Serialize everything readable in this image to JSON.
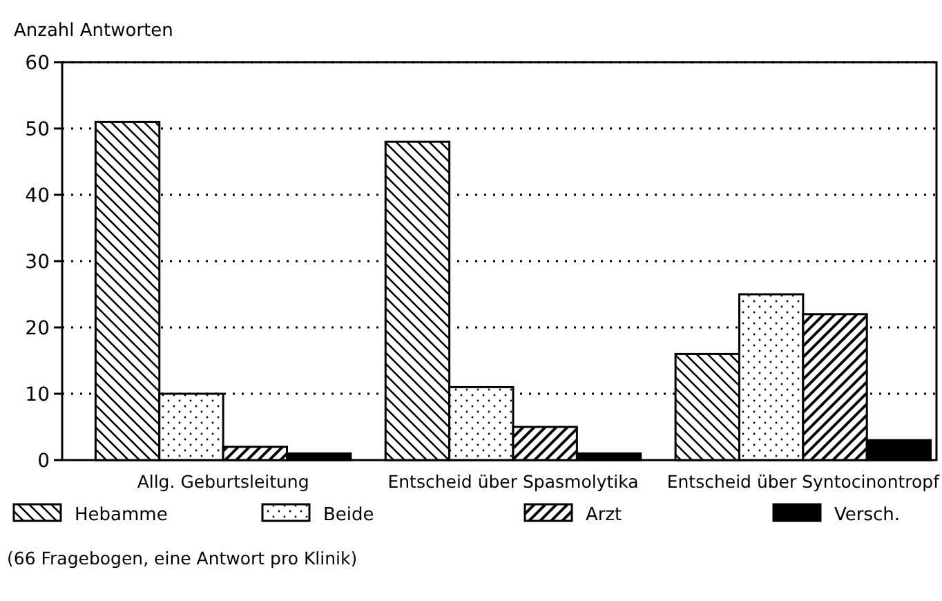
{
  "chart_data": {
    "type": "bar",
    "ylabel": "Anzahl Antworten",
    "categories": [
      "Allg. Geburtsleitung",
      "Entscheid über Spasmolytika",
      "Entscheid über Syntocinontropf"
    ],
    "series": [
      {
        "name": "Hebamme",
        "color": "#000000",
        "values": [
          51,
          48,
          16
        ]
      },
      {
        "name": "Beide",
        "color": "#000000",
        "values": [
          10,
          11,
          25
        ]
      },
      {
        "name": "Arzt",
        "color": "#000000",
        "values": [
          2,
          5,
          22
        ]
      },
      {
        "name": "Versch.",
        "color": "#000000",
        "values": [
          1,
          1,
          3
        ]
      }
    ],
    "ylim": [
      0,
      60
    ],
    "yticks": [
      0,
      10,
      20,
      30,
      40,
      50,
      60
    ],
    "grid": "y",
    "legend": "bottom",
    "annotations": [
      "(66 Fragebogen, eine Antwort pro Klinik)"
    ]
  }
}
